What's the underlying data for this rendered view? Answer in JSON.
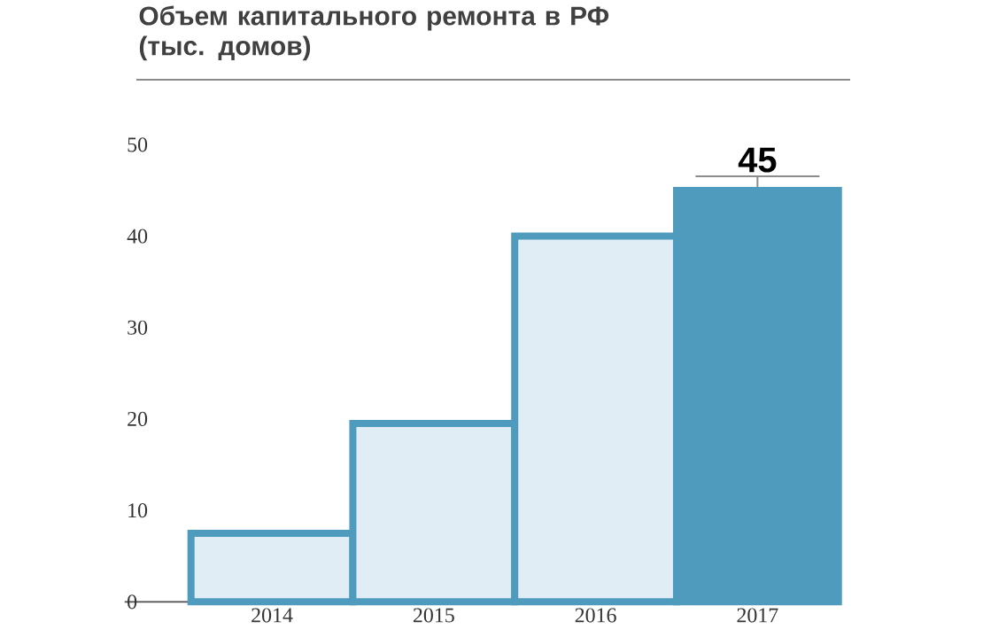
{
  "chart_data": {
    "type": "bar",
    "title": "Объем капитального ремонта в РФ (тыс. домов)",
    "categories": [
      "2014",
      "2015",
      "2016",
      "2017"
    ],
    "values": [
      7.5,
      19.5,
      40,
      45
    ],
    "colors": [
      "#e1edf5",
      "#e1edf5",
      "#e1edf5",
      "#4f9bbd"
    ],
    "value_labels": [
      null,
      null,
      null,
      "45"
    ],
    "ylim": [
      0,
      50
    ],
    "yticks": [
      0,
      10,
      20,
      30,
      40,
      50
    ]
  }
}
